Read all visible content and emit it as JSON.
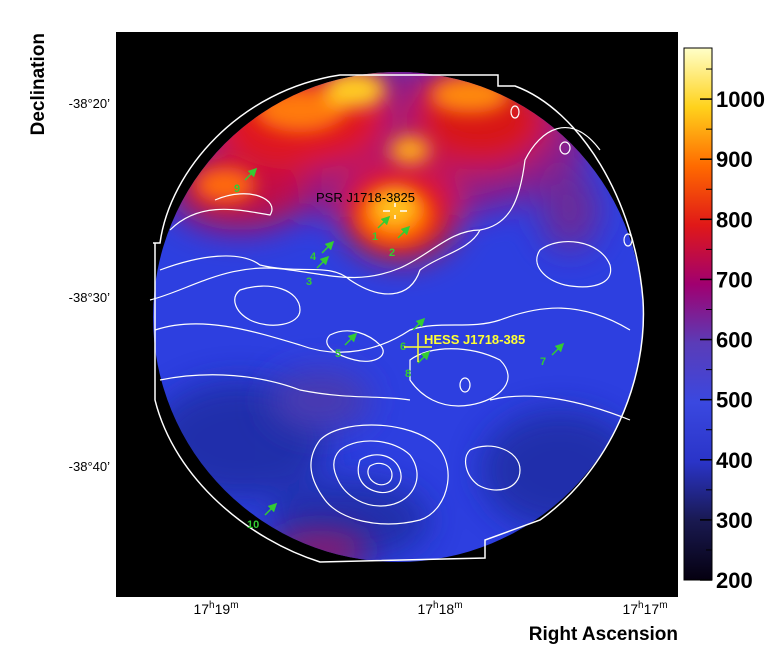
{
  "chart_data": {
    "type": "heatmap",
    "title": "",
    "xlabel": "Right Ascension",
    "ylabel": "Declination",
    "x_ticks": [
      {
        "h": "17",
        "m": "19"
      },
      {
        "h": "17",
        "m": "18"
      },
      {
        "h": "17",
        "m": "17"
      }
    ],
    "y_ticks": [
      "-38°20’",
      "-38°30’",
      "-38°40’"
    ],
    "colorbar": {
      "ticks": [
        1000,
        900,
        800,
        700,
        600,
        500,
        400,
        300,
        200
      ],
      "range": [
        200,
        1085
      ],
      "colors": [
        "#050010",
        "#191950",
        "#2a34c8",
        "#3a48e0",
        "#5a3cb8",
        "#a00070",
        "#e01818",
        "#ff6a00",
        "#ffd21c",
        "#ffffc8"
      ]
    },
    "annotations": [
      {
        "text": "PSR J1718-3825",
        "color": "#000000"
      },
      {
        "text": "HESS J1718-385",
        "color": "#ffff33"
      }
    ],
    "sources": [
      {
        "label": "1"
      },
      {
        "label": "2"
      },
      {
        "label": "3"
      },
      {
        "label": "4"
      },
      {
        "label": "5"
      },
      {
        "label": "6"
      },
      {
        "label": "7"
      },
      {
        "label": "8"
      },
      {
        "label": "9"
      },
      {
        "label": "10"
      }
    ],
    "contour_color": "#ffffff",
    "marker_color": "#33cc33"
  }
}
